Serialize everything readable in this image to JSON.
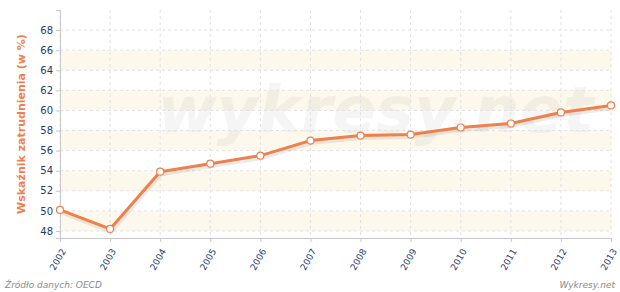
{
  "chart_data": {
    "type": "line",
    "y_label": "Wskaźnik zatrudnienia (w %)",
    "x": [
      2002,
      2003,
      2004,
      2005,
      2006,
      2007,
      2008,
      2009,
      2010,
      2011,
      2012,
      2013
    ],
    "values": [
      50.1,
      48.2,
      53.9,
      54.7,
      55.5,
      57.0,
      57.5,
      57.6,
      58.3,
      58.7,
      59.8,
      60.5
    ],
    "color": "#f07f4a",
    "marker": "circle",
    "xlim": [
      2002,
      2013
    ],
    "xticks": [
      2002,
      2003,
      2004,
      2005,
      2006,
      2007,
      2008,
      2009,
      2010,
      2011,
      2012,
      2013
    ],
    "ylim": [
      47.3,
      70
    ],
    "yticks": [
      48,
      50,
      52,
      54,
      56,
      58,
      60,
      62,
      64,
      66,
      68
    ],
    "grid": true,
    "annotations": [
      "Źródło danych: OECD",
      "Wykresy.net",
      "wykresy.net"
    ]
  }
}
